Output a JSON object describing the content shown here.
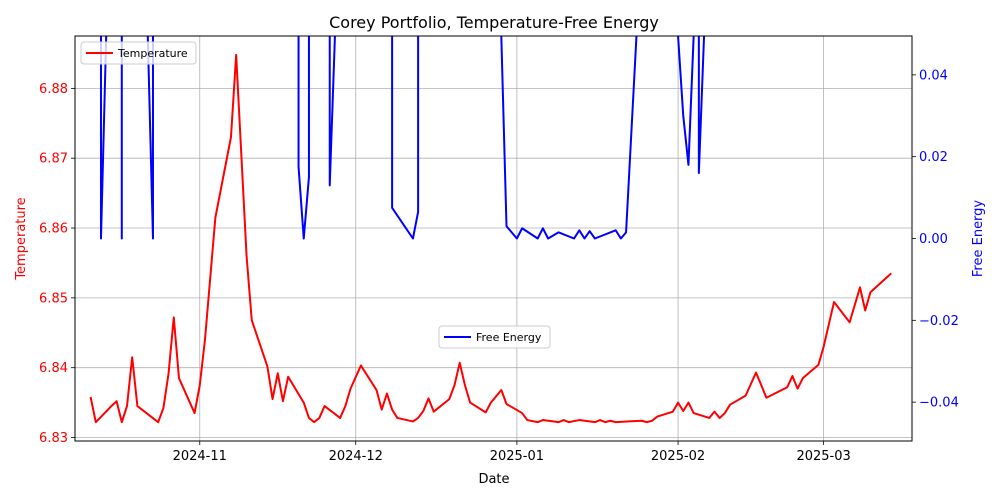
{
  "chart_data": {
    "type": "line",
    "title": "Corey Portfolio, Temperature-Free Energy",
    "xlabel": "Date",
    "x_ticks": [
      "2024-11",
      "2024-12",
      "2025-01",
      "2025-02",
      "2025-03"
    ],
    "x_tick_dates": [
      "2024-11-01",
      "2024-12-01",
      "2025-01-01",
      "2025-02-01",
      "2025-03-01"
    ],
    "xlim": [
      "2024-10-08",
      "2025-03-18"
    ],
    "grid": true,
    "left_axis": {
      "label": "Temperature",
      "color": "#ff0000",
      "ylim": [
        6.8295,
        6.8875
      ],
      "ticks": [
        "6.83",
        "6.84",
        "6.85",
        "6.86",
        "6.87",
        "6.88"
      ]
    },
    "right_axis": {
      "label": "Free Energy",
      "color": "#0000ff",
      "ylim": [
        -0.0495,
        0.0495
      ],
      "ticks": [
        "−0.04",
        "−0.02",
        "0.00",
        "0.02",
        "0.04"
      ]
    },
    "legends": [
      {
        "label": "Temperature",
        "color": "#ff0000",
        "placement": "upper left"
      },
      {
        "label": "Free Energy",
        "color": "#0000ff",
        "placement": "center"
      }
    ],
    "series": [
      {
        "name": "Temperature",
        "axis": "left",
        "color": "#ff0000",
        "points": [
          [
            "2024-10-11",
            6.8358
          ],
          [
            "2024-10-12",
            6.8322
          ],
          [
            "2024-10-15",
            6.8345
          ],
          [
            "2024-10-16",
            6.8352
          ],
          [
            "2024-10-17",
            6.8322
          ],
          [
            "2024-10-18",
            6.8345
          ],
          [
            "2024-10-19",
            6.8415
          ],
          [
            "2024-10-20",
            6.8345
          ],
          [
            "2024-10-24",
            6.8322
          ],
          [
            "2024-10-25",
            6.8342
          ],
          [
            "2024-10-26",
            6.8392
          ],
          [
            "2024-10-27",
            6.8472
          ],
          [
            "2024-10-28",
            6.8385
          ],
          [
            "2024-10-31",
            6.8335
          ],
          [
            "2024-11-01",
            6.8375
          ],
          [
            "2024-11-02",
            6.844
          ],
          [
            "2024-11-04",
            6.8615
          ],
          [
            "2024-11-07",
            6.873
          ],
          [
            "2024-11-08",
            6.8848
          ],
          [
            "2024-11-10",
            6.856
          ],
          [
            "2024-11-11",
            6.8468
          ],
          [
            "2024-11-14",
            6.8402
          ],
          [
            "2024-11-15",
            6.8355
          ],
          [
            "2024-11-16",
            6.8392
          ],
          [
            "2024-11-17",
            6.8352
          ],
          [
            "2024-11-18",
            6.8387
          ],
          [
            "2024-11-21",
            6.835
          ],
          [
            "2024-11-22",
            6.8328
          ],
          [
            "2024-11-23",
            6.8322
          ],
          [
            "2024-11-24",
            6.8328
          ],
          [
            "2024-11-25",
            6.8345
          ],
          [
            "2024-11-28",
            6.8328
          ],
          [
            "2024-11-29",
            6.8345
          ],
          [
            "2024-11-30",
            6.837
          ],
          [
            "2024-12-02",
            6.8403
          ],
          [
            "2024-12-05",
            6.8368
          ],
          [
            "2024-12-06",
            6.834
          ],
          [
            "2024-12-07",
            6.8363
          ],
          [
            "2024-12-08",
            6.834
          ],
          [
            "2024-12-09",
            6.8328
          ],
          [
            "2024-12-12",
            6.8323
          ],
          [
            "2024-12-13",
            6.8328
          ],
          [
            "2024-12-14",
            6.8338
          ],
          [
            "2024-12-15",
            6.8356
          ],
          [
            "2024-12-16",
            6.8337
          ],
          [
            "2024-12-19",
            6.8355
          ],
          [
            "2024-12-20",
            6.8375
          ],
          [
            "2024-12-21",
            6.8407
          ],
          [
            "2024-12-22",
            6.8375
          ],
          [
            "2024-12-23",
            6.835
          ],
          [
            "2024-12-26",
            6.8336
          ],
          [
            "2024-12-27",
            6.835
          ],
          [
            "2024-12-29",
            6.8368
          ],
          [
            "2024-12-30",
            6.8348
          ],
          [
            "2025-01-02",
            6.8335
          ],
          [
            "2025-01-03",
            6.8325
          ],
          [
            "2025-01-05",
            6.8322
          ],
          [
            "2025-01-06",
            6.8325
          ],
          [
            "2025-01-09",
            6.8322
          ],
          [
            "2025-01-10",
            6.8325
          ],
          [
            "2025-01-11",
            6.8322
          ],
          [
            "2025-01-13",
            6.8325
          ],
          [
            "2025-01-16",
            6.8322
          ],
          [
            "2025-01-17",
            6.8325
          ],
          [
            "2025-01-18",
            6.8322
          ],
          [
            "2025-01-19",
            6.8324
          ],
          [
            "2025-01-20",
            6.8322
          ],
          [
            "2025-01-25",
            6.8324
          ],
          [
            "2025-01-26",
            6.8322
          ],
          [
            "2025-01-27",
            6.8324
          ],
          [
            "2025-01-28",
            6.833
          ],
          [
            "2025-01-31",
            6.8337
          ],
          [
            "2025-02-01",
            6.835
          ],
          [
            "2025-02-02",
            6.8338
          ],
          [
            "2025-02-03",
            6.835
          ],
          [
            "2025-02-04",
            6.8335
          ],
          [
            "2025-02-07",
            6.8328
          ],
          [
            "2025-02-08",
            6.8337
          ],
          [
            "2025-02-09",
            6.8328
          ],
          [
            "2025-02-10",
            6.8335
          ],
          [
            "2025-02-11",
            6.8347
          ],
          [
            "2025-02-14",
            6.836
          ],
          [
            "2025-02-16",
            6.8393
          ],
          [
            "2025-02-18",
            6.8357
          ],
          [
            "2025-02-22",
            6.8372
          ],
          [
            "2025-02-23",
            6.8388
          ],
          [
            "2025-02-24",
            6.837
          ],
          [
            "2025-02-25",
            6.8385
          ],
          [
            "2025-02-28",
            6.8404
          ],
          [
            "2025-03-01",
            6.843
          ],
          [
            "2025-03-03",
            6.8494
          ],
          [
            "2025-03-06",
            6.8465
          ],
          [
            "2025-03-08",
            6.8515
          ],
          [
            "2025-03-09",
            6.8482
          ],
          [
            "2025-03-10",
            6.8508
          ],
          [
            "2025-03-14",
            6.8535
          ]
        ]
      },
      {
        "name": "Free Energy",
        "axis": "right",
        "color": "#0000ff",
        "segments": [
          [
            [
              "2024-10-13",
              0.0495
            ],
            [
              "2024-10-13",
              0.0
            ],
            [
              "2024-10-14",
              0.0495
            ],
            [
              "2024-10-14",
              0.0495
            ]
          ],
          [
            [
              "2024-10-17",
              0.0495
            ],
            [
              "2024-10-17",
              0.0
            ],
            [
              "2024-10-17",
              0.0495
            ]
          ],
          [
            [
              "2024-10-22",
              0.0495
            ],
            [
              "2024-10-23",
              0.0
            ],
            [
              "2024-10-23",
              0.0495
            ]
          ],
          [
            [
              "2024-11-20",
              0.0495
            ],
            [
              "2024-11-20",
              0.0175
            ],
            [
              "2024-11-21",
              0.0
            ],
            [
              "2024-11-22",
              0.015
            ],
            [
              "2024-11-22",
              0.0495
            ]
          ],
          [
            [
              "2024-11-26",
              0.0495
            ],
            [
              "2024-11-26",
              0.013
            ],
            [
              "2024-11-27",
              0.0495
            ]
          ],
          [
            [
              "2024-12-08",
              0.0495
            ],
            [
              "2024-12-08",
              0.0075
            ],
            [
              "2024-12-12",
              0.0
            ],
            [
              "2024-12-13",
              0.0065
            ],
            [
              "2024-12-13",
              0.0495
            ]
          ],
          [
            [
              "2024-12-29",
              0.0495
            ],
            [
              "2024-12-30",
              0.003
            ],
            [
              "2025-01-01",
              0.0
            ],
            [
              "2025-01-02",
              0.0025
            ],
            [
              "2025-01-05",
              0.0
            ],
            [
              "2025-01-06",
              0.0025
            ],
            [
              "2025-01-07",
              0.0
            ],
            [
              "2025-01-09",
              0.0015
            ],
            [
              "2025-01-12",
              0.0
            ],
            [
              "2025-01-13",
              0.002
            ],
            [
              "2025-01-14",
              0.0
            ],
            [
              "2025-01-15",
              0.0018
            ],
            [
              "2025-01-16",
              0.0
            ],
            [
              "2025-01-20",
              0.002
            ],
            [
              "2025-01-21",
              0.0
            ],
            [
              "2025-01-22",
              0.0015
            ],
            [
              "2025-01-24",
              0.0495
            ]
          ],
          [
            [
              "2025-02-01",
              0.0495
            ],
            [
              "2025-02-02",
              0.03
            ],
            [
              "2025-02-03",
              0.018
            ],
            [
              "2025-02-04",
              0.0495
            ]
          ],
          [
            [
              "2025-02-05",
              0.0495
            ],
            [
              "2025-02-05",
              0.016
            ],
            [
              "2025-02-06",
              0.0495
            ]
          ]
        ]
      }
    ]
  }
}
